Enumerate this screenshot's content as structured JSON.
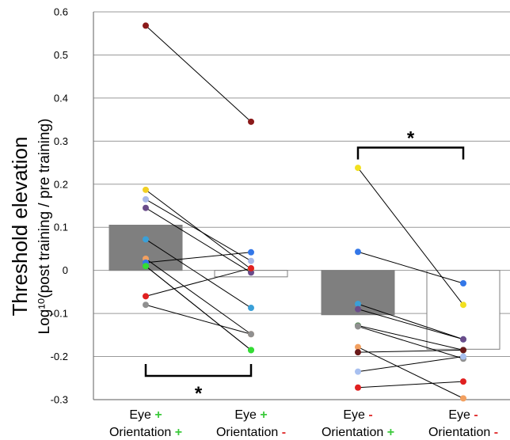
{
  "chart_data": {
    "type": "bar",
    "ylabel_main": "Threshold elevation",
    "ylabel_sub": "Log¹⁰(post training / pre training)",
    "ylim": [
      -0.3,
      0.6
    ],
    "yticks": [
      "0.6",
      "0.5",
      "0.4",
      "0.3",
      "0.2",
      "0.1",
      "0",
      "-0.1",
      "-0.2",
      "-0.3"
    ],
    "grid": true,
    "categories": [
      {
        "line1": "Eye",
        "sign1": "+",
        "line2": "Orientation",
        "sign2": "+"
      },
      {
        "line1": "Eye",
        "sign1": "+",
        "line2": "Orientation",
        "sign2": "-"
      },
      {
        "line1": "Eye",
        "sign1": "-",
        "line2": "Orientation",
        "sign2": "+"
      },
      {
        "line1": "Eye",
        "sign1": "-",
        "line2": "Orientation",
        "sign2": "-"
      }
    ],
    "colors": {
      "plus": "#3cc93c",
      "minus": "#e03030",
      "bar_trained": "#7f7f7f",
      "bar_untrained": "#ffffff"
    },
    "bars": [
      {
        "value": 0.105,
        "fill": "trained"
      },
      {
        "value": -0.015,
        "fill": "untrained"
      },
      {
        "value": -0.103,
        "fill": "trained"
      },
      {
        "value": -0.183,
        "fill": "untrained"
      }
    ],
    "pairs_left": [
      {
        "color": "#8b1a1a",
        "from": 0.568,
        "to": 0.345
      },
      {
        "color": "#f2d024",
        "from": 0.187,
        "to": 0.003
      },
      {
        "color": "#a8b8e8",
        "from": 0.165,
        "to": 0.022
      },
      {
        "color": "#6a4c8a",
        "from": 0.145,
        "to": -0.005
      },
      {
        "color": "#3aa0d8",
        "from": 0.072,
        "to": -0.087
      },
      {
        "color": "#f2a060",
        "from": 0.027,
        "to": -0.148
      },
      {
        "color": "#2a9d6a",
        "from": 0.01,
        "to": -0.185
      },
      {
        "color": "#e02020",
        "from": -0.06,
        "to": 0.005
      },
      {
        "color": "#909090",
        "from": -0.08,
        "to": -0.148
      },
      {
        "color": "#3377e8",
        "from": 0.018,
        "to": 0.042
      },
      {
        "color": "#33dd33",
        "from": 0.01,
        "to": -0.185
      }
    ],
    "pairs_right": [
      {
        "color": "#f2e020",
        "from": 0.238,
        "to": -0.08
      },
      {
        "color": "#3377e8",
        "from": 0.043,
        "to": -0.03
      },
      {
        "color": "#3aa0d8",
        "from": -0.078,
        "to": -0.16
      },
      {
        "color": "#6a4c8a",
        "from": -0.09,
        "to": -0.16
      },
      {
        "color": "#5a8a5a",
        "from": -0.128,
        "to": -0.185
      },
      {
        "color": "#909090",
        "from": -0.13,
        "to": -0.205
      },
      {
        "color": "#f2a060",
        "from": -0.178,
        "to": -0.297
      },
      {
        "color": "#6a1a1a",
        "from": -0.19,
        "to": -0.185
      },
      {
        "color": "#a8c0f0",
        "from": -0.235,
        "to": -0.2
      },
      {
        "color": "#e02020",
        "from": -0.272,
        "to": -0.258
      }
    ],
    "significance": [
      {
        "label": "*",
        "between": [
          0,
          1
        ],
        "y": -0.245,
        "direction": "down"
      },
      {
        "label": "*",
        "between": [
          2,
          3
        ],
        "y": 0.285,
        "direction": "down"
      }
    ]
  }
}
